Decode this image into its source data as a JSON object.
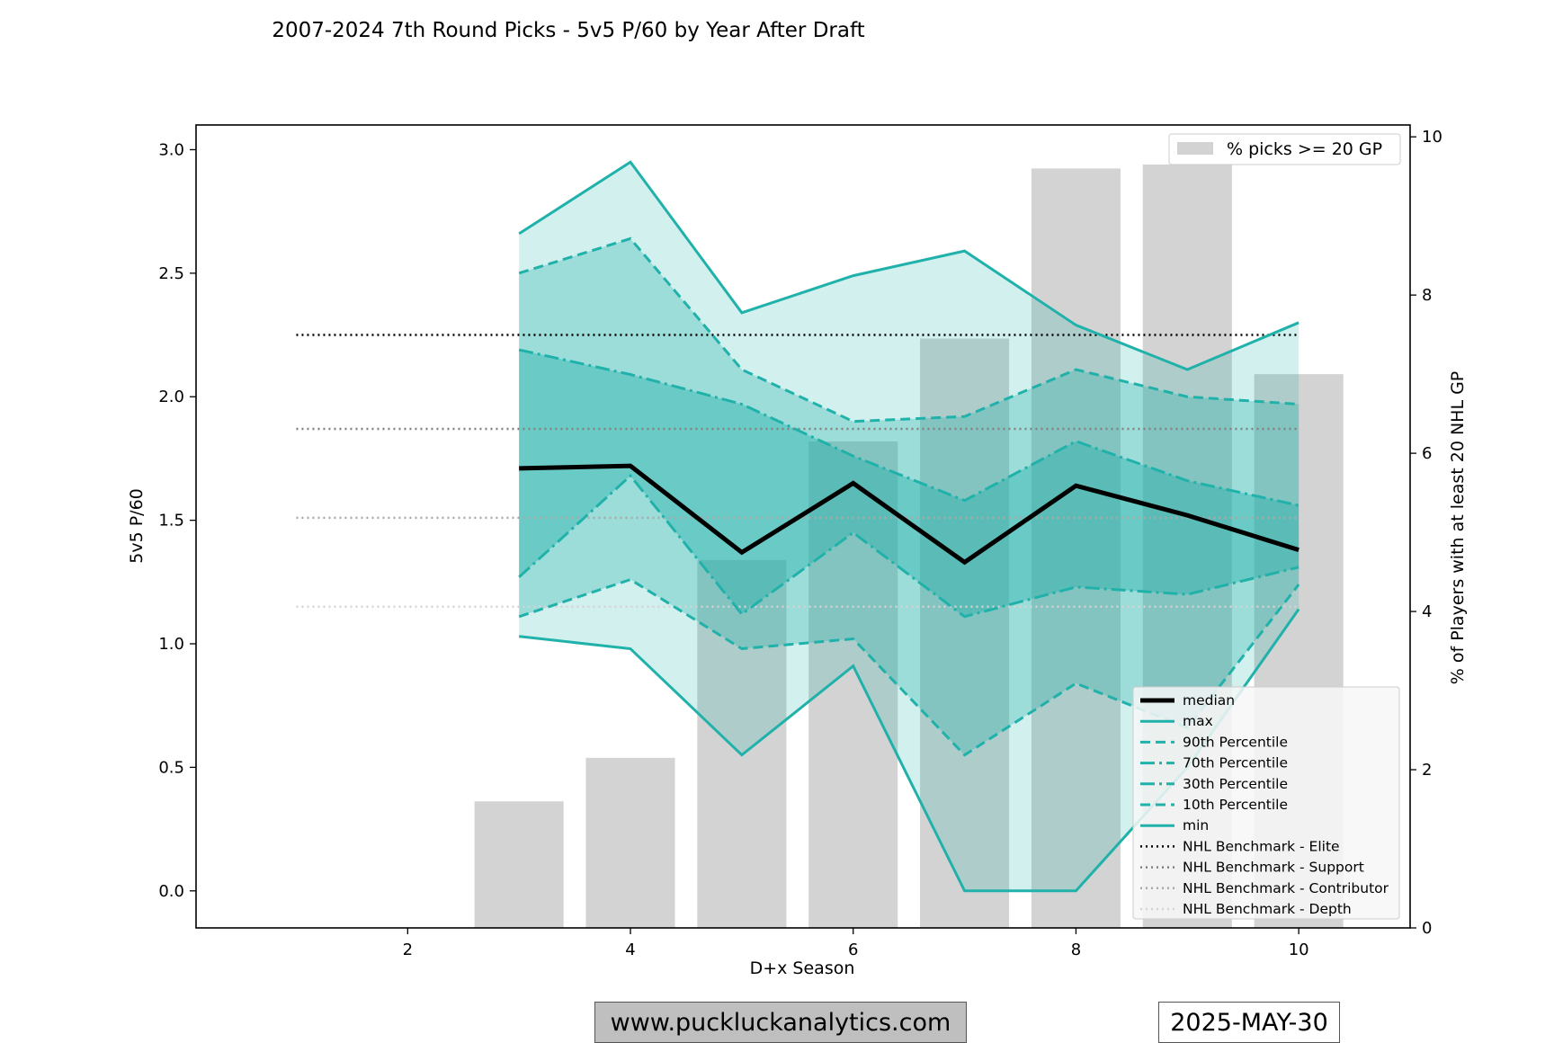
{
  "chart_data": {
    "type": "line",
    "title": "2007-2024 7th Round Picks - 5v5 P/60 by Year After Draft",
    "xlabel": "D+x Season",
    "ylabel": "5v5 P/60",
    "y2label": "% of Players with at least 20 NHL GP",
    "xlim": [
      0.1,
      11.0
    ],
    "ylim": [
      -0.15,
      3.1
    ],
    "y2lim": [
      0,
      10.15
    ],
    "x_ticks": [
      2,
      4,
      6,
      8,
      10
    ],
    "y_ticks": [
      0.0,
      0.5,
      1.0,
      1.5,
      2.0,
      2.5,
      3.0
    ],
    "y2_ticks": [
      0,
      2,
      4,
      6,
      8,
      10
    ],
    "x": [
      3,
      4,
      5,
      6,
      7,
      8,
      9,
      10
    ],
    "series": [
      {
        "name": "median",
        "values": [
          1.71,
          1.72,
          1.37,
          1.65,
          1.33,
          1.64,
          1.52,
          1.38
        ]
      },
      {
        "name": "max",
        "values": [
          2.66,
          2.95,
          2.34,
          2.49,
          2.59,
          2.29,
          2.11,
          2.3
        ]
      },
      {
        "name": "90th Percentile",
        "values": [
          2.5,
          2.64,
          2.11,
          1.9,
          1.92,
          2.11,
          2.0,
          1.97
        ]
      },
      {
        "name": "70th Percentile",
        "values": [
          2.19,
          2.09,
          1.97,
          1.76,
          1.58,
          1.82,
          1.66,
          1.56
        ]
      },
      {
        "name": "30th Percentile",
        "values": [
          1.27,
          1.68,
          1.12,
          1.45,
          1.11,
          1.23,
          1.2,
          1.31
        ]
      },
      {
        "name": "10th Percentile",
        "values": [
          1.11,
          1.26,
          0.98,
          1.02,
          0.55,
          0.84,
          0.66,
          1.24
        ]
      },
      {
        "name": "min",
        "values": [
          1.03,
          0.98,
          0.55,
          0.91,
          0.0,
          0.0,
          0.5,
          1.14
        ]
      }
    ],
    "benchmarks": [
      {
        "name": "NHL Benchmark - Elite",
        "value": 2.25,
        "color": "#000000"
      },
      {
        "name": "NHL Benchmark - Support",
        "value": 1.87,
        "color": "#808080"
      },
      {
        "name": "NHL Benchmark - Contributor",
        "value": 1.51,
        "color": "#a9a9a9"
      },
      {
        "name": "NHL Benchmark - Depth",
        "value": 1.15,
        "color": "#d3d3d3"
      }
    ],
    "bars": {
      "name": "% picks >= 20 GP",
      "x": [
        3,
        4,
        5,
        6,
        7,
        8,
        9,
        10
      ],
      "values": [
        1.6,
        2.15,
        4.65,
        6.15,
        7.45,
        9.6,
        9.65,
        7.0
      ]
    },
    "colors": {
      "band": "#20b2aa",
      "median": "#000000",
      "bar": "#d3d3d3"
    },
    "legend_main_position": "lower-right",
    "legend_bars_position": "upper-right"
  },
  "footer": {
    "url": "www.puckluckanalytics.com",
    "date": "2025-MAY-30"
  }
}
